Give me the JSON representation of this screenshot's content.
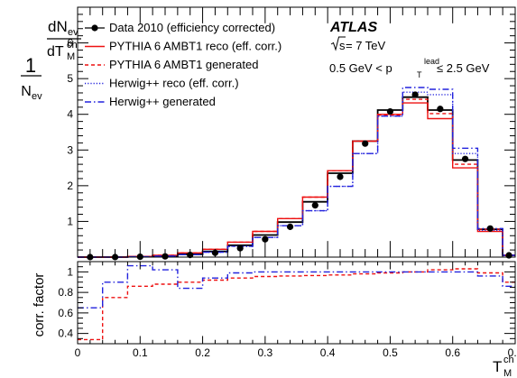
{
  "chart_data": [
    {
      "type": "step",
      "panel": "main",
      "ylabel": {
        "prefix": "1",
        "N": "N",
        "ev_sub": "ev",
        "dN": "dN",
        "dN_ev": "ev",
        "dT": "dT",
        "ch_sup": "ch",
        "M_sub": "M"
      },
      "ylim": [
        0,
        7
      ],
      "yticks": [
        1,
        2,
        3,
        4,
        5,
        6
      ],
      "xlim": [
        0,
        0.7
      ],
      "bin_edges": [
        0,
        0.04,
        0.08,
        0.12,
        0.16,
        0.2,
        0.24,
        0.28,
        0.32,
        0.36,
        0.4,
        0.44,
        0.48,
        0.52,
        0.56,
        0.6,
        0.64,
        0.68,
        0.7
      ],
      "annotations": {
        "experiment": "ATLAS",
        "energy": {
          "sqrt_s": "s",
          "rest": " = 7 TeV"
        },
        "cut": {
          "left": "0.5 GeV < p",
          "sub": "T",
          "sup": "lead",
          "right": " ≤ 2.5 GeV"
        }
      },
      "legend_position": "top-left",
      "series": [
        {
          "name": "Data 2010 (efficiency corrected)",
          "style": "markers",
          "color": "#000000",
          "values": [
            0.0,
            0.0,
            0.01,
            0.02,
            0.06,
            0.12,
            0.25,
            0.5,
            0.85,
            1.45,
            2.25,
            3.18,
            4.08,
            4.55,
            4.15,
            2.75,
            0.8,
            0.05
          ]
        },
        {
          "name": "",
          "style": "solid",
          "color": "#000000",
          "values": [
            0.0,
            0.0,
            0.01,
            0.03,
            0.08,
            0.16,
            0.33,
            0.62,
            0.98,
            1.55,
            2.35,
            3.25,
            4.12,
            4.48,
            4.12,
            2.72,
            0.78,
            0.05
          ]
        },
        {
          "name": "PYTHIA 6 AMBT1 reco (eff. corr.)",
          "style": "solid",
          "color": "#ee1111",
          "values": [
            0.0,
            0.0,
            0.02,
            0.05,
            0.12,
            0.22,
            0.42,
            0.72,
            1.08,
            1.68,
            2.42,
            3.25,
            4.0,
            4.32,
            3.88,
            2.5,
            0.72,
            0.05
          ]
        },
        {
          "name": "PYTHIA 6 AMBT1 generated",
          "style": "dashed",
          "color": "#ee1111",
          "values": [
            0.0,
            0.0,
            0.02,
            0.05,
            0.12,
            0.22,
            0.42,
            0.72,
            1.08,
            1.68,
            2.42,
            3.25,
            3.98,
            4.42,
            4.02,
            2.6,
            0.78,
            0.05
          ]
        },
        {
          "name": "Herwig++ reco (eff. corr.)",
          "style": "dotted",
          "color": "#2222dd",
          "values": [
            0.0,
            0.0,
            0.01,
            0.03,
            0.07,
            0.14,
            0.3,
            0.55,
            0.88,
            1.3,
            1.98,
            2.9,
            3.95,
            4.62,
            4.55,
            2.9,
            0.75,
            0.05
          ]
        },
        {
          "name": "Herwig++ generated",
          "style": "dashdot",
          "color": "#2222dd",
          "values": [
            0.0,
            0.0,
            0.01,
            0.03,
            0.07,
            0.14,
            0.3,
            0.55,
            0.88,
            1.3,
            1.98,
            2.9,
            3.95,
            4.75,
            4.7,
            3.05,
            0.8,
            0.05
          ]
        }
      ]
    },
    {
      "type": "step",
      "panel": "ratio",
      "ylabel": "corr. factor",
      "ylim": [
        0.3,
        1.1
      ],
      "yticks": [
        0.4,
        0.6,
        0.8,
        1
      ],
      "ytick_labels": [
        "0.4",
        "0.6",
        "0.8",
        "1"
      ],
      "xlim": [
        0,
        0.7
      ],
      "xticks": [
        0,
        0.1,
        0.2,
        0.3,
        0.4,
        0.5,
        0.6,
        0.7
      ],
      "xtick_labels": [
        "0",
        "0.1",
        "0.2",
        "0.3",
        "0.4",
        "0.5",
        "0.6",
        "0.7"
      ],
      "xlabel": {
        "T": "T",
        "sup": "ch",
        "sub": "M"
      },
      "bin_edges": [
        0,
        0.04,
        0.08,
        0.12,
        0.16,
        0.2,
        0.24,
        0.28,
        0.32,
        0.36,
        0.4,
        0.44,
        0.48,
        0.52,
        0.56,
        0.6,
        0.64,
        0.68,
        0.7
      ],
      "series": [
        {
          "name": "PYTHIA 6 AMBT1",
          "style": "dashed",
          "color": "#ee1111",
          "values": [
            0.34,
            0.75,
            0.86,
            0.88,
            0.9,
            0.92,
            0.94,
            0.955,
            0.96,
            0.965,
            0.97,
            0.98,
            0.99,
            1.0,
            1.02,
            1.03,
            0.99,
            0.9
          ]
        },
        {
          "name": "Herwig++",
          "style": "dashdot",
          "color": "#2222dd",
          "values": [
            0.65,
            0.9,
            1.06,
            1.02,
            0.84,
            0.94,
            0.99,
            1.0,
            1.0,
            1.0,
            1.0,
            1.0,
            1.0,
            1.0,
            1.0,
            1.0,
            0.96,
            0.86
          ]
        }
      ]
    }
  ]
}
